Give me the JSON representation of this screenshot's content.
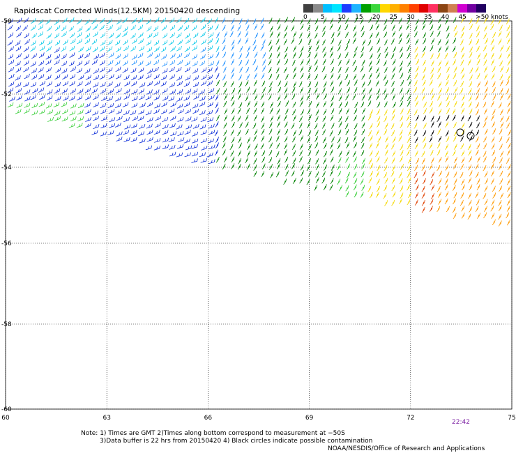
{
  "title": "Rapidscat Corrected Winds(12.5KM) 20150420 descending",
  "legend": {
    "colors": [
      "#404040",
      "#8a8a8a",
      "#00bfff",
      "#00e5ff",
      "#1e3cff",
      "#1eb4ff",
      "#00a000",
      "#3ad63a",
      "#ffd700",
      "#ffb000",
      "#ff8000",
      "#ff4000",
      "#e00000",
      "#ff3060",
      "#8b4513",
      "#d08050",
      "#d000d0",
      "#7000a0",
      "#200060"
    ],
    "labels": [
      {
        "text": "0",
        "pos": 0
      },
      {
        "text": "5",
        "pos": 1
      },
      {
        "text": "10",
        "pos": 2
      },
      {
        "text": "15",
        "pos": 3
      },
      {
        "text": "20",
        "pos": 4
      },
      {
        "text": "25",
        "pos": 5
      },
      {
        "text": "30",
        "pos": 6
      },
      {
        "text": "35",
        "pos": 7
      },
      {
        "text": "40",
        "pos": 8
      },
      {
        "text": "45",
        "pos": 9
      },
      {
        "text": ">50 knots",
        "pos": 10
      }
    ]
  },
  "map": {
    "lon_range": [
      60,
      75
    ],
    "lat_range": [
      -50,
      -60
    ],
    "lon_ticks": [
      "60",
      "63",
      "66",
      "69",
      "72",
      "75"
    ],
    "lat_ticks": [
      "-50",
      "-52",
      "-54",
      "-56",
      "-58",
      "-60"
    ],
    "swath_colors": {
      "cyan": "#00c8e8",
      "light_blue": "#1e90ff",
      "blue": "#0b2cd8",
      "dark_green": "#008000",
      "green": "#32cd32",
      "yellow": "#f5d800",
      "orange": "#ff9a00",
      "red_orange": "#e04000",
      "black": "#000000"
    }
  },
  "timestamp": "22:42",
  "notes": [
    "Note: 1) Times are GMT 2)Times along bottom correspond to measurement at −50S",
    "3)Data buffer is 22 hrs from 20150420 4) Black circles indicate possible contamination"
  ],
  "credit": "NOAA/NESDIS/Office of Research and Applications"
}
